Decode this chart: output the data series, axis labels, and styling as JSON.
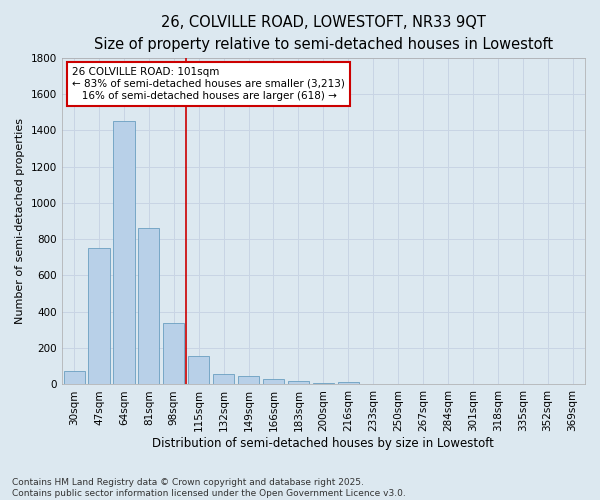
{
  "title1": "26, COLVILLE ROAD, LOWESTOFT, NR33 9QT",
  "title2": "Size of property relative to semi-detached houses in Lowestoft",
  "xlabel": "Distribution of semi-detached houses by size in Lowestoft",
  "ylabel": "Number of semi-detached properties",
  "categories": [
    "30sqm",
    "47sqm",
    "64sqm",
    "81sqm",
    "98sqm",
    "115sqm",
    "132sqm",
    "149sqm",
    "166sqm",
    "183sqm",
    "200sqm",
    "216sqm",
    "233sqm",
    "250sqm",
    "267sqm",
    "284sqm",
    "301sqm",
    "318sqm",
    "335sqm",
    "352sqm",
    "369sqm"
  ],
  "values": [
    75,
    750,
    1450,
    860,
    340,
    155,
    60,
    45,
    30,
    20,
    10,
    15,
    5,
    0,
    0,
    0,
    0,
    0,
    0,
    0,
    5
  ],
  "bar_color": "#b8d0e8",
  "bar_edge_color": "#6a9fc0",
  "vline_x": 4.5,
  "annotation_text": "26 COLVILLE ROAD: 101sqm\n← 83% of semi-detached houses are smaller (3,213)\n   16% of semi-detached houses are larger (618) →",
  "annotation_box_color": "#ffffff",
  "annotation_box_edge_color": "#cc0000",
  "vline_color": "#cc0000",
  "grid_color": "#c8d4e4",
  "background_color": "#dce8f0",
  "ylim": [
    0,
    1800
  ],
  "yticks": [
    0,
    200,
    400,
    600,
    800,
    1000,
    1200,
    1400,
    1600,
    1800
  ],
  "footer_text": "Contains HM Land Registry data © Crown copyright and database right 2025.\nContains public sector information licensed under the Open Government Licence v3.0.",
  "title1_fontsize": 10.5,
  "title2_fontsize": 9,
  "xlabel_fontsize": 8.5,
  "ylabel_fontsize": 8,
  "tick_fontsize": 7.5,
  "annotation_fontsize": 7.5,
  "footer_fontsize": 6.5
}
